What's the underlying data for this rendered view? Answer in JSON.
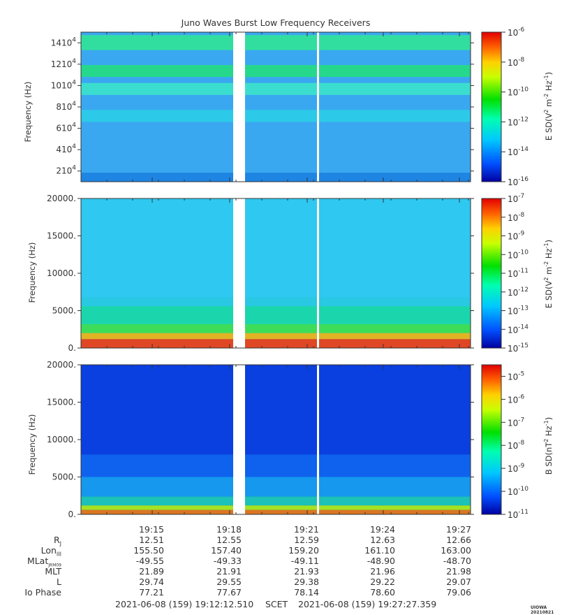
{
  "chart_data": {
    "type": "heatmap",
    "title": "Juno Waves Burst Low Frequency Receivers",
    "time_ticks": [
      "19:15",
      "19:18",
      "19:21",
      "19:24",
      "19:27"
    ],
    "panels": [
      {
        "name": "panel-top",
        "ylabel": "Frequency (Hz)",
        "colorbar_label": "E SD (V^2 m^-2 Hz^-1)",
        "yticks": [
          "14×10^4",
          "12×10^4",
          "10×10^4",
          "8×10^4",
          "6×10^4",
          "4×10^4",
          "2×10^4"
        ],
        "yrange_hz": [
          10000,
          150000
        ],
        "cbar_ticks": [
          "10^-6",
          "10^-8",
          "10^-10",
          "10^-12",
          "10^-14",
          "10^-16"
        ],
        "cbar_range_exp": [
          -16,
          -6
        ]
      },
      {
        "name": "panel-middle",
        "ylabel": "Frequency (Hz)",
        "colorbar_label": "E SD (V^2 m^-2 Hz^-1)",
        "yticks": [
          "20000.",
          "15000.",
          "10000.",
          "5000.",
          "0."
        ],
        "yrange_hz": [
          0,
          20000
        ],
        "cbar_ticks": [
          "10^-7",
          "10^-8",
          "10^-9",
          "10^-10",
          "10^-11",
          "10^-12",
          "10^-13",
          "10^-14",
          "10^-15"
        ],
        "cbar_range_exp": [
          -15,
          -7
        ]
      },
      {
        "name": "panel-bottom",
        "ylabel": "Frequency (Hz)",
        "colorbar_label": "B SD (nT^2 Hz^-1)",
        "yticks": [
          "20000.",
          "15000.",
          "10000.",
          "5000.",
          "0."
        ],
        "yrange_hz": [
          0,
          20000
        ],
        "cbar_ticks": [
          "10^-5",
          "10^-6",
          "10^-7",
          "10^-8",
          "10^-9",
          "10^-10",
          "10^-11"
        ],
        "cbar_range_exp": [
          -11,
          -4.5
        ]
      }
    ],
    "ephemeris": {
      "labels": [
        "Rj",
        "Lon_III",
        "MLat_JRM09",
        "MLT",
        "L",
        "Io Phase"
      ],
      "rows": [
        [
          "12.51",
          "12.55",
          "12.59",
          "12.63",
          "12.66"
        ],
        [
          "155.50",
          "157.40",
          "159.20",
          "161.10",
          "163.00"
        ],
        [
          "-49.55",
          "-49.33",
          "-49.11",
          "-48.90",
          "-48.70"
        ],
        [
          "21.89",
          "21.91",
          "21.93",
          "21.96",
          "21.98"
        ],
        [
          "29.74",
          "29.55",
          "29.38",
          "29.22",
          "29.07"
        ],
        [
          "77.21",
          "77.67",
          "78.14",
          "78.60",
          "79.06"
        ]
      ]
    }
  },
  "footer": {
    "start": "2021-06-08 (159) 19:12:12.510",
    "scet": "SCET",
    "end": "2021-06-08 (159) 19:27:27.359"
  },
  "credit": "UIOWA 20210821"
}
